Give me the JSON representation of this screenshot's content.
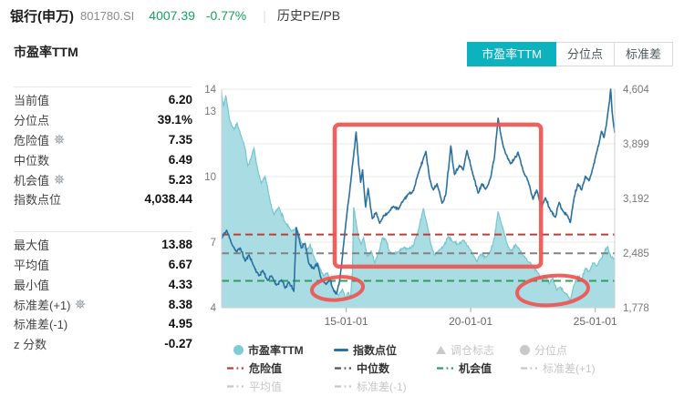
{
  "header": {
    "name": "银行(申万)",
    "code": "801780.SI",
    "price": "4007.39",
    "change": "-0.77%",
    "separator": "|",
    "menu": "历史PE/PB"
  },
  "panel": {
    "title": "市盈率TTM",
    "stats_top": [
      {
        "label": "当前值",
        "value": "6.20",
        "gear": false
      },
      {
        "label": "分位点",
        "value": "39.1%",
        "gear": false
      },
      {
        "label": "危险值",
        "value": "7.35",
        "gear": true
      },
      {
        "label": "中位数",
        "value": "6.49",
        "gear": false
      },
      {
        "label": "机会值",
        "value": "5.23",
        "gear": true
      },
      {
        "label": "指数点位",
        "value": "4,038.44",
        "gear": false
      }
    ],
    "stats_bottom": [
      {
        "label": "最大值",
        "value": "13.88",
        "gear": false
      },
      {
        "label": "平均值",
        "value": "6.67",
        "gear": false
      },
      {
        "label": "最小值",
        "value": "4.33",
        "gear": false
      },
      {
        "label": "标准差(+1)",
        "value": "8.38",
        "gear": true
      },
      {
        "label": "标准差(-1)",
        "value": "4.95",
        "gear": false
      },
      {
        "label": "z 分数",
        "value": "-0.27",
        "gear": false
      }
    ]
  },
  "tabs": [
    {
      "label": "市盈率TTM",
      "active": true
    },
    {
      "label": "分位点",
      "active": false
    },
    {
      "label": "标准差",
      "active": false
    }
  ],
  "chart_data": {
    "type": "line",
    "x_axis": {
      "tick_labels": [
        "15-01-01",
        "20-01-01",
        "25-01-01"
      ],
      "tick_years": [
        2015,
        2020,
        2025
      ],
      "range_years": [
        2010.0,
        2025.78
      ]
    },
    "y_left": {
      "range": [
        4,
        14
      ],
      "tick_values": [
        4,
        7,
        10,
        13,
        14
      ],
      "tick_labels": [
        "4",
        "7",
        "10",
        "13",
        "14"
      ],
      "gridline_values": [
        5.5,
        7,
        8.5,
        10,
        11.5,
        13,
        14
      ]
    },
    "y_right": {
      "range": [
        1778,
        4604
      ],
      "tick_values": [
        1778,
        2485,
        3192,
        3899,
        4604
      ],
      "tick_labels": [
        "1,778",
        "2,485",
        "3,192",
        "3,899",
        "4,604"
      ]
    },
    "reference_lines": [
      {
        "name": "危险值",
        "value": 7.35,
        "color": "#b8403c"
      },
      {
        "name": "中位数",
        "value": 6.49,
        "color": "#828282"
      },
      {
        "name": "机会值",
        "value": 5.23,
        "color": "#2f9e5e"
      }
    ],
    "series": [
      {
        "name": "市盈率TTM",
        "kind": "area",
        "axis": "left",
        "fill": "#a9dce3",
        "stroke": "#76c6d0",
        "roughness": 0.09,
        "points": [
          [
            2010.0,
            13.88
          ],
          [
            2010.08,
            13.2
          ],
          [
            2010.17,
            13.72
          ],
          [
            2010.33,
            12.55
          ],
          [
            2010.5,
            12.15
          ],
          [
            2010.62,
            12.45
          ],
          [
            2010.8,
            11.8
          ],
          [
            2010.95,
            11.25
          ],
          [
            2011.05,
            10.5
          ],
          [
            2011.18,
            10.85
          ],
          [
            2011.3,
            11.3
          ],
          [
            2011.45,
            10.3
          ],
          [
            2011.6,
            9.7
          ],
          [
            2011.75,
            10.0
          ],
          [
            2011.95,
            8.85
          ],
          [
            2012.1,
            8.25
          ],
          [
            2012.3,
            8.6
          ],
          [
            2012.55,
            7.9
          ],
          [
            2012.8,
            7.5
          ],
          [
            2013.0,
            7.65
          ],
          [
            2013.2,
            7.0
          ],
          [
            2013.4,
            6.6
          ],
          [
            2013.55,
            6.9
          ],
          [
            2013.75,
            6.2
          ],
          [
            2013.95,
            5.8
          ],
          [
            2014.1,
            5.45
          ],
          [
            2014.25,
            5.6
          ],
          [
            2014.4,
            5.0
          ],
          [
            2014.55,
            4.75
          ],
          [
            2014.7,
            4.55
          ],
          [
            2014.85,
            4.85
          ],
          [
            2014.97,
            4.45
          ],
          [
            2015.08,
            4.7
          ],
          [
            2015.18,
            4.5
          ],
          [
            2015.25,
            5.6
          ],
          [
            2015.3,
            8.6
          ],
          [
            2015.4,
            7.9
          ],
          [
            2015.5,
            7.2
          ],
          [
            2015.6,
            6.9
          ],
          [
            2015.7,
            7.2
          ],
          [
            2015.85,
            6.35
          ],
          [
            2016.0,
            6.6
          ],
          [
            2016.15,
            6.05
          ],
          [
            2016.3,
            6.5
          ],
          [
            2016.45,
            7.2
          ],
          [
            2016.6,
            7.1
          ],
          [
            2016.75,
            6.55
          ],
          [
            2016.9,
            6.45
          ],
          [
            2017.1,
            6.55
          ],
          [
            2017.3,
            6.75
          ],
          [
            2017.5,
            6.7
          ],
          [
            2017.7,
            6.85
          ],
          [
            2017.9,
            7.55
          ],
          [
            2018.1,
            8.55
          ],
          [
            2018.25,
            7.8
          ],
          [
            2018.4,
            6.9
          ],
          [
            2018.55,
            6.4
          ],
          [
            2018.7,
            6.6
          ],
          [
            2018.9,
            6.8
          ],
          [
            2019.1,
            7.25
          ],
          [
            2019.3,
            7.0
          ],
          [
            2019.5,
            6.9
          ],
          [
            2019.7,
            7.1
          ],
          [
            2019.9,
            6.8
          ],
          [
            2020.1,
            6.4
          ],
          [
            2020.25,
            6.1
          ],
          [
            2020.4,
            6.45
          ],
          [
            2020.6,
            6.3
          ],
          [
            2020.8,
            6.6
          ],
          [
            2020.95,
            7.2
          ],
          [
            2021.1,
            8.4
          ],
          [
            2021.22,
            7.9
          ],
          [
            2021.35,
            7.4
          ],
          [
            2021.5,
            6.8
          ],
          [
            2021.65,
            6.6
          ],
          [
            2021.8,
            6.9
          ],
          [
            2021.95,
            6.7
          ],
          [
            2022.1,
            6.4
          ],
          [
            2022.3,
            6.1
          ],
          [
            2022.5,
            5.9
          ],
          [
            2022.7,
            5.6
          ],
          [
            2022.85,
            5.3
          ],
          [
            2023.0,
            5.45
          ],
          [
            2023.15,
            5.1
          ],
          [
            2023.3,
            5.35
          ],
          [
            2023.45,
            4.8
          ],
          [
            2023.6,
            4.95
          ],
          [
            2023.75,
            4.7
          ],
          [
            2023.9,
            4.55
          ],
          [
            2024.0,
            4.35
          ],
          [
            2024.15,
            5.05
          ],
          [
            2024.3,
            5.45
          ],
          [
            2024.45,
            5.3
          ],
          [
            2024.6,
            5.8
          ],
          [
            2024.75,
            5.65
          ],
          [
            2024.9,
            6.05
          ],
          [
            2025.05,
            5.9
          ],
          [
            2025.2,
            6.2
          ],
          [
            2025.35,
            6.5
          ],
          [
            2025.5,
            6.8
          ],
          [
            2025.62,
            6.35
          ],
          [
            2025.78,
            6.2
          ]
        ]
      },
      {
        "name": "指数点位",
        "kind": "line",
        "axis": "right",
        "stroke": "#2a71a0",
        "roughness": 26,
        "points": [
          [
            2010.0,
            2670
          ],
          [
            2010.2,
            2780
          ],
          [
            2010.4,
            2610
          ],
          [
            2010.6,
            2500
          ],
          [
            2010.75,
            2550
          ],
          [
            2010.95,
            2380
          ],
          [
            2011.1,
            2460
          ],
          [
            2011.3,
            2310
          ],
          [
            2011.5,
            2190
          ],
          [
            2011.65,
            2260
          ],
          [
            2011.85,
            2130
          ],
          [
            2012.0,
            2190
          ],
          [
            2012.2,
            2070
          ],
          [
            2012.4,
            2140
          ],
          [
            2012.55,
            2030
          ],
          [
            2012.7,
            2110
          ],
          [
            2012.9,
            1990
          ],
          [
            2013.0,
            2815
          ],
          [
            2013.2,
            2550
          ],
          [
            2013.35,
            2610
          ],
          [
            2013.5,
            2350
          ],
          [
            2013.7,
            2280
          ],
          [
            2013.85,
            2350
          ],
          [
            2014.0,
            2150
          ],
          [
            2014.2,
            2080
          ],
          [
            2014.35,
            2160
          ],
          [
            2014.5,
            2000
          ],
          [
            2014.62,
            1955
          ],
          [
            2014.75,
            2150
          ],
          [
            2014.9,
            2600
          ],
          [
            2015.05,
            3050
          ],
          [
            2015.2,
            3450
          ],
          [
            2015.3,
            3750
          ],
          [
            2015.4,
            4050
          ],
          [
            2015.5,
            3640
          ],
          [
            2015.58,
            3400
          ],
          [
            2015.66,
            3560
          ],
          [
            2015.78,
            3080
          ],
          [
            2015.88,
            3320
          ],
          [
            2016.05,
            2930
          ],
          [
            2016.2,
            3010
          ],
          [
            2016.35,
            2870
          ],
          [
            2016.5,
            2970
          ],
          [
            2016.7,
            3010
          ],
          [
            2016.9,
            3090
          ],
          [
            2017.1,
            3050
          ],
          [
            2017.3,
            3170
          ],
          [
            2017.5,
            3250
          ],
          [
            2017.7,
            3290
          ],
          [
            2017.9,
            3520
          ],
          [
            2018.2,
            3800
          ],
          [
            2018.35,
            3450
          ],
          [
            2018.5,
            3300
          ],
          [
            2018.65,
            3380
          ],
          [
            2018.85,
            3130
          ],
          [
            2019.0,
            3240
          ],
          [
            2019.2,
            3870
          ],
          [
            2019.35,
            3500
          ],
          [
            2019.55,
            3620
          ],
          [
            2019.7,
            3560
          ],
          [
            2019.85,
            3810
          ],
          [
            2020.05,
            3550
          ],
          [
            2020.3,
            3260
          ],
          [
            2020.45,
            3380
          ],
          [
            2020.6,
            3310
          ],
          [
            2020.8,
            3460
          ],
          [
            2020.95,
            3720
          ],
          [
            2021.1,
            4230
          ],
          [
            2021.25,
            3950
          ],
          [
            2021.4,
            3770
          ],
          [
            2021.6,
            3640
          ],
          [
            2021.75,
            3700
          ],
          [
            2021.9,
            3790
          ],
          [
            2022.1,
            3550
          ],
          [
            2022.3,
            3420
          ],
          [
            2022.5,
            3180
          ],
          [
            2022.65,
            3300
          ],
          [
            2022.85,
            3090
          ],
          [
            2023.0,
            3200
          ],
          [
            2023.2,
            3040
          ],
          [
            2023.4,
            2950
          ],
          [
            2023.55,
            3140
          ],
          [
            2023.7,
            3030
          ],
          [
            2023.9,
            2960
          ],
          [
            2024.0,
            2880
          ],
          [
            2024.15,
            3200
          ],
          [
            2024.3,
            3380
          ],
          [
            2024.45,
            3300
          ],
          [
            2024.6,
            3480
          ],
          [
            2024.75,
            3420
          ],
          [
            2024.9,
            3580
          ],
          [
            2025.05,
            3780
          ],
          [
            2025.15,
            3900
          ],
          [
            2025.25,
            4060
          ],
          [
            2025.35,
            3980
          ],
          [
            2025.45,
            4150
          ],
          [
            2025.55,
            4400
          ],
          [
            2025.62,
            4604
          ],
          [
            2025.68,
            4300
          ],
          [
            2025.78,
            4040
          ]
        ]
      }
    ],
    "annotations": {
      "color": "#f0534f",
      "rect": {
        "year1": 2014.54,
        "year2": 2022.82,
        "pe_top": 12.38,
        "pe_bottom": 5.88
      },
      "ellipses": [
        {
          "cy_year": 2014.65,
          "c_pe": 4.88,
          "rx_years": 1.03,
          "ry_pe": 0.52
        },
        {
          "cy_year": 2023.29,
          "c_pe": 4.79,
          "rx_years": 1.43,
          "ry_pe": 0.67
        }
      ]
    },
    "legend": [
      [
        {
          "label": "市盈率TTM",
          "icon": "circle",
          "color": "#7fccd5",
          "active": true
        },
        {
          "label": "指数点位",
          "icon": "line",
          "color": "#2a71a0",
          "active": true
        },
        {
          "label": "调仓标志",
          "icon": "triangle",
          "color": "#c9c9c9",
          "active": false
        },
        {
          "label": "分位点",
          "icon": "circle",
          "color": "#c9c9c9",
          "active": false
        }
      ],
      [
        {
          "label": "危险值",
          "icon": "dashdot",
          "color": "#b8403c",
          "active": true
        },
        {
          "label": "中位数",
          "icon": "dashdot",
          "color": "#555555",
          "active": true
        },
        {
          "label": "机会值",
          "icon": "dashdot",
          "color": "#2f9e5e",
          "active": true
        },
        {
          "label": "标准差(+1)",
          "icon": "dashdot",
          "color": "#c6c6c6",
          "active": false
        }
      ],
      [
        {
          "label": "平均值",
          "icon": "dashdot",
          "color": "#c6c6c6",
          "active": false
        },
        {
          "label": "标准差(-1)",
          "icon": "dashdot",
          "color": "#c6c6c6",
          "active": false
        }
      ]
    ]
  }
}
